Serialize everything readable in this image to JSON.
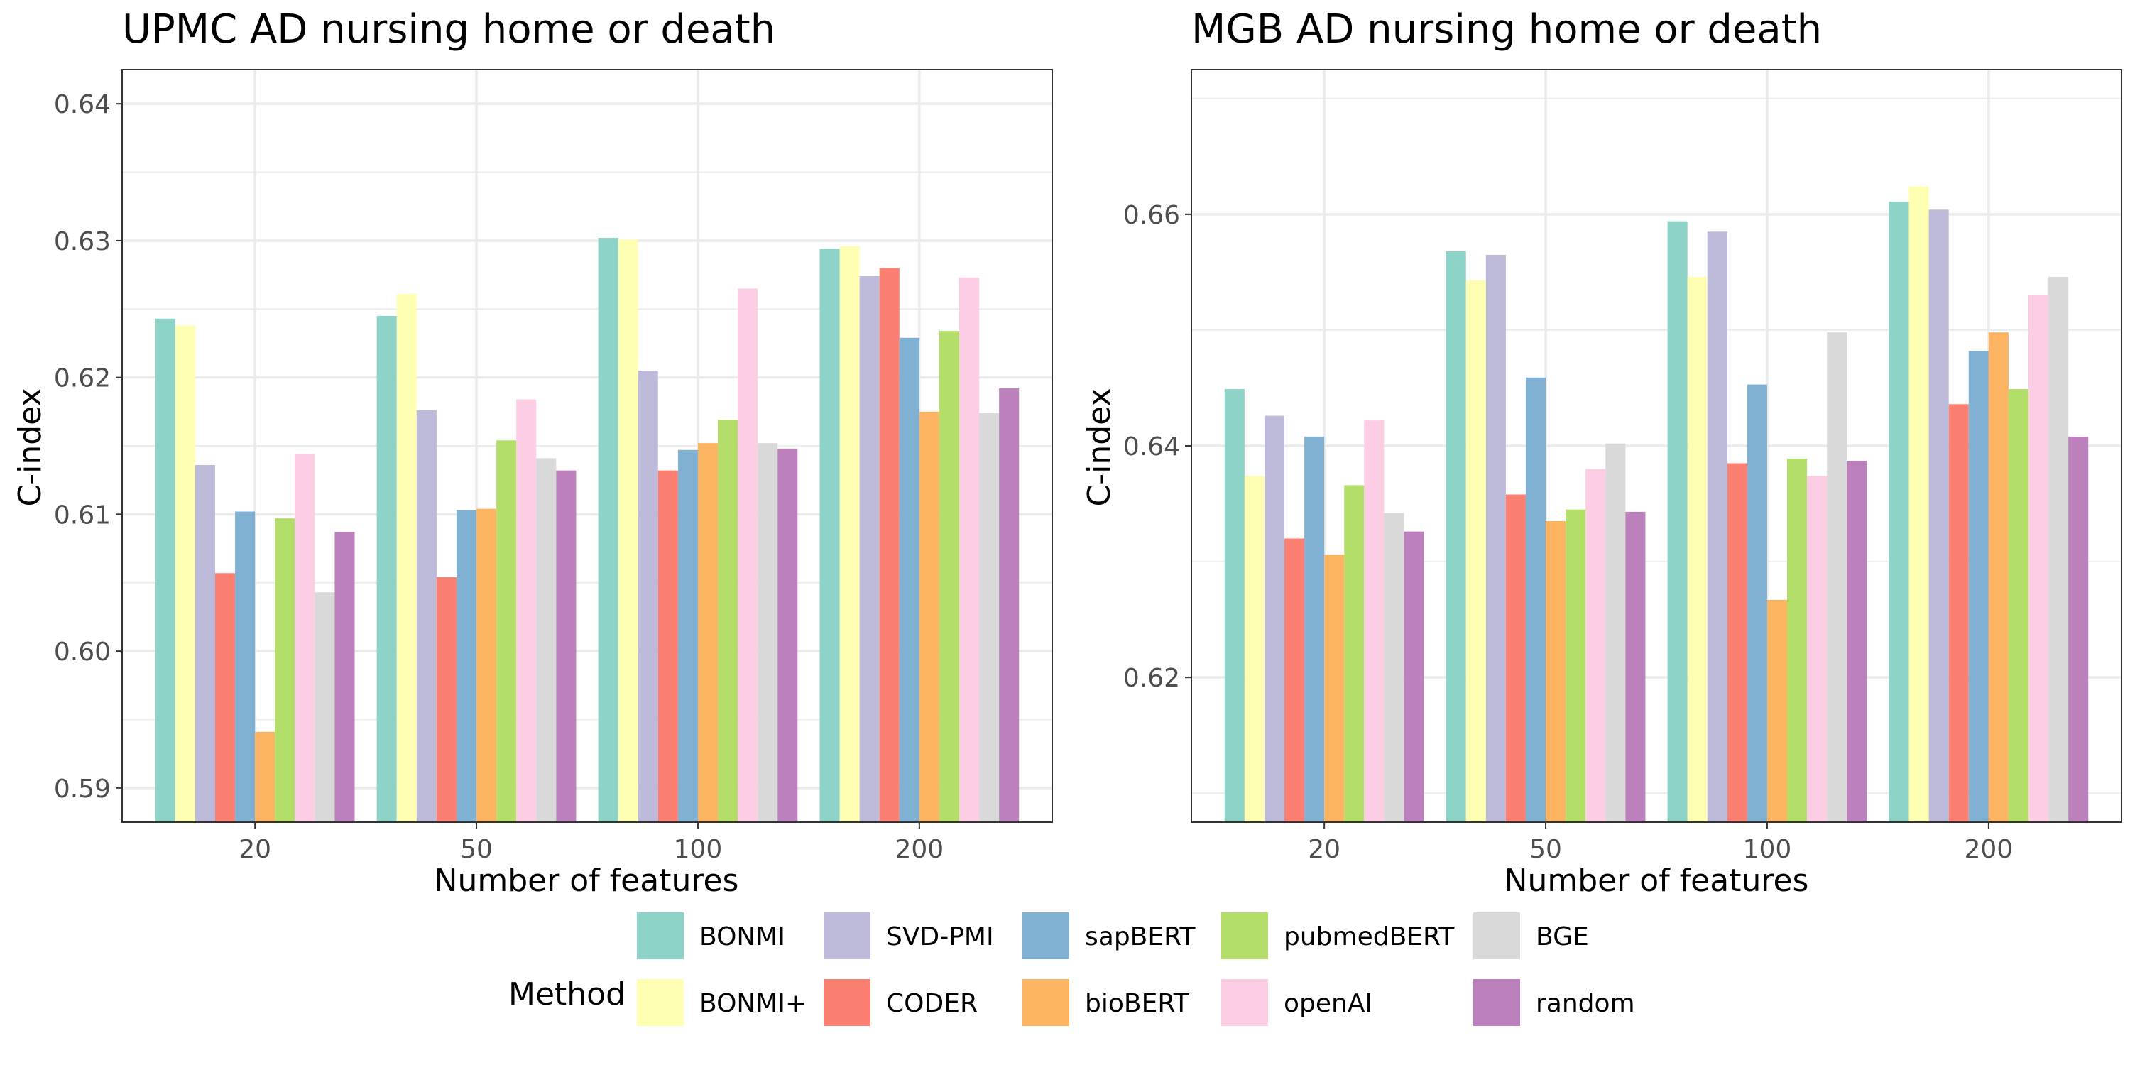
{
  "chart_data": [
    {
      "type": "bar",
      "title": "UPMC AD nursing home or death",
      "xlabel": "Number of features",
      "ylabel": "C-index",
      "categories": [
        "20",
        "50",
        "100",
        "200"
      ],
      "ylim": [
        0.5875,
        0.6425
      ],
      "yticks": [
        0.59,
        0.6,
        0.61,
        0.62,
        0.63,
        0.64
      ],
      "ytick_labels": [
        "0.59",
        "0.60",
        "0.61",
        "0.62",
        "0.63",
        "0.64"
      ],
      "series": [
        {
          "name": "BONMI",
          "values": [
            0.6243,
            0.6245,
            0.6302,
            0.6294
          ]
        },
        {
          "name": "BONMI+",
          "values": [
            0.6238,
            0.6261,
            0.6301,
            0.6296
          ]
        },
        {
          "name": "SVD-PMI",
          "values": [
            0.6136,
            0.6176,
            0.6205,
            0.6274
          ]
        },
        {
          "name": "CODER",
          "values": [
            0.6057,
            0.6054,
            0.6132,
            0.628
          ]
        },
        {
          "name": "sapBERT",
          "values": [
            0.6102,
            0.6103,
            0.6147,
            0.6229
          ]
        },
        {
          "name": "bioBERT",
          "values": [
            0.5941,
            0.6104,
            0.6152,
            0.6175
          ]
        },
        {
          "name": "pubmedBERT",
          "values": [
            0.6097,
            0.6154,
            0.6169,
            0.6234
          ]
        },
        {
          "name": "openAI",
          "values": [
            0.6144,
            0.6184,
            0.6265,
            0.6273
          ]
        },
        {
          "name": "BGE",
          "values": [
            0.6043,
            0.6141,
            0.6152,
            0.6174
          ]
        },
        {
          "name": "random",
          "values": [
            0.6087,
            0.6132,
            0.6148,
            0.6192
          ]
        }
      ]
    },
    {
      "type": "bar",
      "title": "MGB AD nursing home or death",
      "xlabel": "Number of features",
      "ylabel": "C-index",
      "categories": [
        "20",
        "50",
        "100",
        "200"
      ],
      "ylim": [
        0.6075,
        0.6725
      ],
      "yticks": [
        0.62,
        0.64,
        0.66
      ],
      "ytick_labels": [
        "0.62",
        "0.64",
        "0.66"
      ],
      "series": [
        {
          "name": "BONMI",
          "values": [
            0.6449,
            0.6568,
            0.6594,
            0.6611
          ]
        },
        {
          "name": "BONMI+",
          "values": [
            0.6374,
            0.6543,
            0.6546,
            0.6624
          ]
        },
        {
          "name": "SVD-PMI",
          "values": [
            0.6426,
            0.6565,
            0.6585,
            0.6604
          ]
        },
        {
          "name": "CODER",
          "values": [
            0.632,
            0.6358,
            0.6385,
            0.6436
          ]
        },
        {
          "name": "sapBERT",
          "values": [
            0.6408,
            0.6459,
            0.6453,
            0.6482
          ]
        },
        {
          "name": "bioBERT",
          "values": [
            0.6306,
            0.6335,
            0.6267,
            0.6498
          ]
        },
        {
          "name": "pubmedBERT",
          "values": [
            0.6366,
            0.6345,
            0.6389,
            0.6449
          ]
        },
        {
          "name": "openAI",
          "values": [
            0.6422,
            0.638,
            0.6374,
            0.653
          ]
        },
        {
          "name": "BGE",
          "values": [
            0.6342,
            0.6402,
            0.6498,
            0.6546
          ]
        },
        {
          "name": "random",
          "values": [
            0.6326,
            0.6343,
            0.6387,
            0.6408
          ]
        }
      ]
    }
  ],
  "legend": {
    "title": "Method",
    "position": "bottom",
    "items": [
      {
        "label": "BONMI",
        "color": "#8DD3C7"
      },
      {
        "label": "BONMI+",
        "color": "#FFFFB3"
      },
      {
        "label": "SVD-PMI",
        "color": "#BEBADA"
      },
      {
        "label": "CODER",
        "color": "#FB8072"
      },
      {
        "label": "sapBERT",
        "color": "#80B1D3"
      },
      {
        "label": "bioBERT",
        "color": "#FDB462"
      },
      {
        "label": "pubmedBERT",
        "color": "#B3DE69"
      },
      {
        "label": "openAI",
        "color": "#FCCDE5"
      },
      {
        "label": "BGE",
        "color": "#D9D9D9"
      },
      {
        "label": "random",
        "color": "#BC80BD"
      }
    ]
  }
}
